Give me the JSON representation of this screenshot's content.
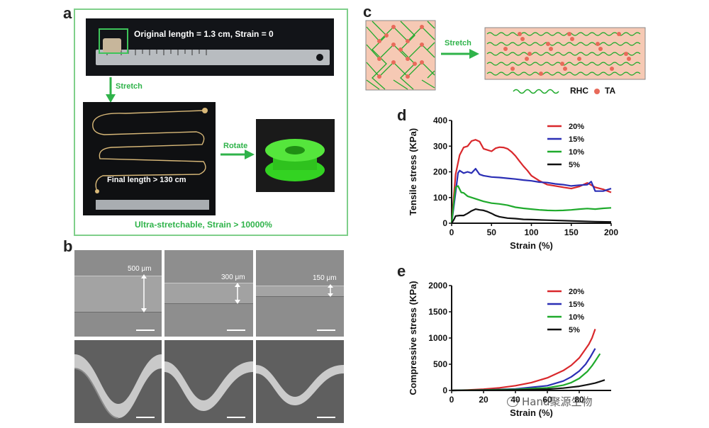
{
  "panels": {
    "a": {
      "letter": "a",
      "original_label": "Original length = 1.3 cm, Strain = 0",
      "stretch_label": "Stretch",
      "rotate_label": "Rotate",
      "final_label": "Final length > 130 cm",
      "caption": "Ultra-stretchable, Strain > 10000%"
    },
    "b": {
      "letter": "b",
      "widths": [
        "500 μm",
        "300 μm",
        "150 μm"
      ]
    },
    "c": {
      "letter": "c",
      "stretch_label": "Stretch",
      "legend_rhc": "RHC",
      "legend_ta": "TA"
    },
    "d": {
      "letter": "d"
    },
    "e": {
      "letter": "e"
    },
    "watermark": "Hand聚源生物"
  },
  "colors": {
    "green": "#2fb34a",
    "red": "#d9282c",
    "blue": "#2b2fb5",
    "green_line": "#1faa2c",
    "black": "#111111",
    "pink": "#f3b9a2"
  },
  "chart_data": [
    {
      "id": "d",
      "type": "line",
      "xlabel": "Strain (%)",
      "ylabel": "Tensile stress (KPa)",
      "xlim": [
        0,
        200
      ],
      "ylim": [
        0,
        400
      ],
      "xticks": [
        0,
        50,
        100,
        150,
        200
      ],
      "yticks": [
        0,
        100,
        200,
        300,
        400
      ],
      "legend": "top-right",
      "series": [
        {
          "name": "20%",
          "color": "#d9282c",
          "x": [
            0,
            5,
            10,
            15,
            20,
            25,
            30,
            35,
            40,
            45,
            50,
            55,
            60,
            65,
            70,
            75,
            80,
            85,
            90,
            95,
            100,
            110,
            120,
            130,
            140,
            150,
            160,
            170,
            180,
            190,
            200
          ],
          "y": [
            0,
            190,
            265,
            295,
            300,
            320,
            325,
            318,
            290,
            285,
            280,
            292,
            296,
            295,
            290,
            278,
            262,
            242,
            222,
            205,
            185,
            165,
            150,
            145,
            140,
            135,
            143,
            157,
            140,
            132,
            120
          ]
        },
        {
          "name": "15%",
          "color": "#2b2fb5",
          "x": [
            0,
            5,
            8,
            10,
            15,
            20,
            25,
            30,
            35,
            40,
            50,
            60,
            70,
            80,
            90,
            100,
            110,
            120,
            130,
            140,
            150,
            160,
            170,
            175,
            180,
            190,
            200
          ],
          "y": [
            0,
            120,
            195,
            205,
            195,
            200,
            195,
            212,
            190,
            185,
            180,
            178,
            175,
            172,
            168,
            165,
            160,
            158,
            153,
            150,
            145,
            148,
            150,
            162,
            125,
            125,
            135
          ]
        },
        {
          "name": "10%",
          "color": "#1faa2c",
          "x": [
            0,
            3,
            5,
            8,
            12,
            15,
            20,
            30,
            40,
            50,
            60,
            70,
            80,
            90,
            100,
            110,
            120,
            130,
            140,
            150,
            160,
            170,
            180,
            190,
            200
          ],
          "y": [
            0,
            90,
            140,
            145,
            120,
            118,
            105,
            95,
            85,
            78,
            75,
            70,
            62,
            58,
            55,
            52,
            50,
            49,
            50,
            52,
            55,
            57,
            55,
            58,
            60
          ]
        },
        {
          "name": "5%",
          "color": "#111111",
          "x": [
            0,
            3,
            5,
            10,
            15,
            20,
            25,
            30,
            35,
            40,
            45,
            50,
            55,
            60,
            70,
            80,
            90,
            100,
            120,
            140,
            160,
            180,
            200
          ],
          "y": [
            0,
            15,
            28,
            30,
            30,
            38,
            48,
            55,
            52,
            50,
            45,
            38,
            30,
            25,
            20,
            18,
            15,
            14,
            12,
            10,
            8,
            6,
            5
          ]
        }
      ]
    },
    {
      "id": "e",
      "type": "line",
      "xlabel": "Strain (%)",
      "ylabel": "Compressive stress (KPa)",
      "xlim": [
        0,
        100
      ],
      "ylim": [
        0,
        2000
      ],
      "xticks": [
        0,
        20,
        40,
        60,
        80
      ],
      "yticks": [
        0,
        500,
        1000,
        1500,
        2000
      ],
      "legend": "top-right",
      "series": [
        {
          "name": "20%",
          "color": "#d9282c",
          "x": [
            0,
            10,
            20,
            30,
            40,
            50,
            60,
            70,
            75,
            80,
            83,
            86,
            88,
            90
          ],
          "y": [
            0,
            10,
            25,
            50,
            90,
            150,
            240,
            380,
            480,
            620,
            750,
            880,
            1000,
            1170
          ]
        },
        {
          "name": "15%",
          "color": "#2b2fb5",
          "x": [
            0,
            20,
            40,
            60,
            70,
            75,
            80,
            84,
            87,
            90
          ],
          "y": [
            0,
            10,
            30,
            90,
            180,
            260,
            370,
            500,
            640,
            800
          ]
        },
        {
          "name": "10%",
          "color": "#1faa2c",
          "x": [
            0,
            20,
            40,
            60,
            70,
            75,
            80,
            85,
            88,
            90,
            93
          ],
          "y": [
            0,
            8,
            20,
            50,
            100,
            150,
            230,
            360,
            470,
            560,
            700
          ]
        },
        {
          "name": "5%",
          "color": "#111111",
          "x": [
            0,
            20,
            40,
            60,
            70,
            80,
            85,
            90,
            93,
            96
          ],
          "y": [
            0,
            4,
            10,
            25,
            45,
            80,
            110,
            140,
            170,
            200
          ]
        }
      ]
    }
  ]
}
